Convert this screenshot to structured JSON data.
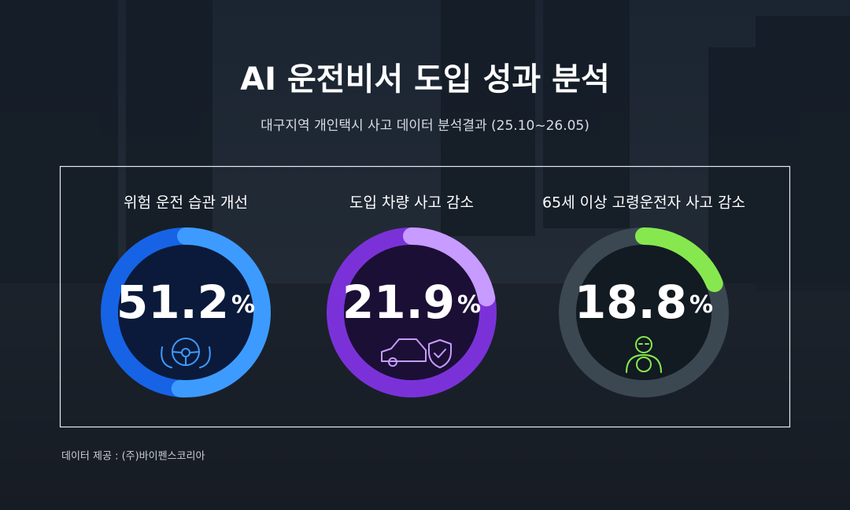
{
  "title": "AI 운전비서 도입 성과 분석",
  "subtitle": "대구지역 개인택시 사고 데이터 분석결과 (25.10~26.05)",
  "source": "데이터 제공 : (주)바이펜스코리아",
  "chart_data": [
    {
      "type": "gauge",
      "title": "위험 운전 습관 개선",
      "values": [
        51.2
      ],
      "unit": "%",
      "ylim": [
        0,
        100
      ],
      "color": "#3d9bff"
    },
    {
      "type": "gauge",
      "title": "도입 차량 사고 감소",
      "values": [
        21.9
      ],
      "unit": "%",
      "ylim": [
        0,
        100
      ],
      "color": "#c79bff"
    },
    {
      "type": "gauge",
      "title": "65세 이상 고령운전자 사고 감소",
      "values": [
        18.8
      ],
      "unit": "%",
      "ylim": [
        0,
        100
      ],
      "color": "#86e84e"
    }
  ]
}
